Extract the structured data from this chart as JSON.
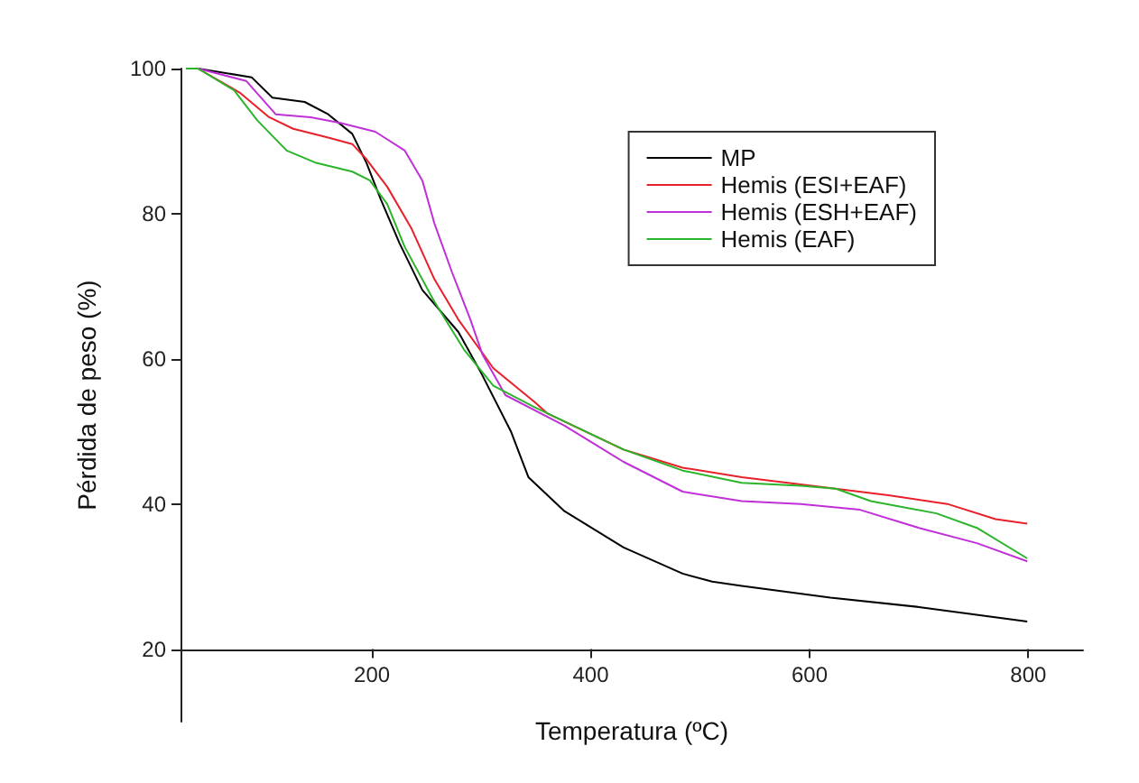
{
  "chart_data": {
    "type": "line",
    "xlabel": "Temperatura (ºC)",
    "ylabel": "Pérdida de peso (%)",
    "xlim": [
      25,
      850
    ],
    "xticks": [
      200,
      400,
      600,
      800
    ],
    "ylim": [
      10,
      100
    ],
    "yticks": [
      20,
      40,
      60,
      80,
      100
    ],
    "grid": false,
    "legend": "top right",
    "series": [
      {
        "name": "MP",
        "color": "#000000",
        "x": [
          30,
          41,
          90,
          109,
          138.5,
          160,
          182,
          195,
          208,
          225,
          246,
          279,
          300,
          327,
          343,
          376,
          430,
          484,
          511,
          538,
          619,
          700,
          799
        ],
        "values": [
          100,
          100,
          98.8,
          96,
          95.4,
          93.7,
          91,
          87,
          82,
          76,
          69.5,
          63.7,
          58,
          50,
          43.7,
          39,
          34,
          30.4,
          29.3,
          28.7,
          27.1,
          25.8,
          23.8
        ]
      },
      {
        "name": "Hemis (ESI+EAF)",
        "color": "#e8202a",
        "x": [
          30,
          41,
          79,
          106,
          128,
          160,
          182,
          195,
          214,
          236,
          257,
          279,
          311,
          349,
          360,
          430,
          484,
          538,
          592,
          672,
          726,
          770,
          799
        ],
        "values": [
          100,
          100,
          96.7,
          93.3,
          91.7,
          90.5,
          89.6,
          87.5,
          83.7,
          78,
          71,
          65.4,
          58.7,
          54,
          52.5,
          47.5,
          45,
          43.7,
          42.7,
          41.2,
          40,
          37.9,
          37.3
        ]
      },
      {
        "name": "Hemis (ESH+EAF)",
        "color": "#c030d8",
        "x": [
          30,
          41,
          85,
          112,
          144,
          171,
          203,
          230,
          246,
          257,
          273,
          290,
          301,
          322,
          376,
          430,
          484,
          538,
          592,
          646,
          700,
          753,
          799
        ],
        "values": [
          100,
          100,
          98.3,
          93.7,
          93.3,
          92.5,
          91.3,
          88.7,
          84.6,
          78.7,
          72,
          65.4,
          60.6,
          55,
          50.8,
          45.8,
          41.7,
          40.4,
          40,
          39.2,
          36.7,
          34.6,
          32.1
        ]
      },
      {
        "name": "Hemis (EAF)",
        "color": "#2ab52a",
        "x": [
          30,
          41,
          74,
          95,
          122,
          149,
          182,
          198,
          214,
          230,
          257,
          284,
          311,
          349,
          430,
          484,
          538,
          592,
          624,
          656,
          716,
          753,
          799
        ],
        "values": [
          100,
          100,
          97,
          92.9,
          88.7,
          87,
          85.8,
          84.6,
          81.3,
          75.4,
          67.9,
          61.3,
          56.3,
          53.3,
          47.5,
          44.6,
          42.9,
          42.5,
          42.1,
          40.4,
          38.7,
          36.7,
          32.5
        ]
      }
    ]
  }
}
